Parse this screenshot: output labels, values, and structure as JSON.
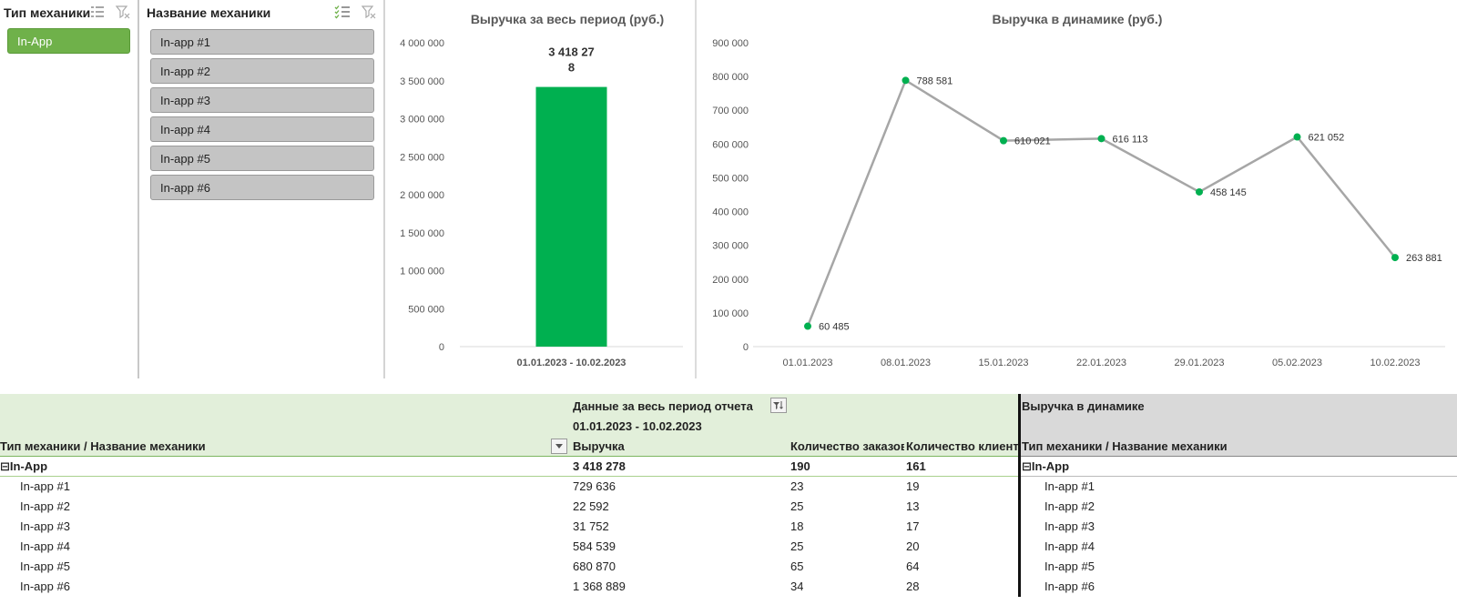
{
  "slicer_type": {
    "title": "Тип механики",
    "items": [
      {
        "label": "In-App",
        "selected": true
      }
    ]
  },
  "slicer_name": {
    "title": "Название механики",
    "items": [
      {
        "label": "In-app #1"
      },
      {
        "label": "In-app #2"
      },
      {
        "label": "In-app #3"
      },
      {
        "label": "In-app #4"
      },
      {
        "label": "In-app #5"
      },
      {
        "label": "In-app #6"
      }
    ]
  },
  "chart_data": [
    {
      "type": "bar",
      "title": "Выручка за весь период (руб.)",
      "categories": [
        "01.01.2023 - 10.02.2023"
      ],
      "values": [
        3418278
      ],
      "data_labels": [
        "3 418 27",
        "8"
      ],
      "ylim": [
        0,
        4000000
      ],
      "yticks": [
        "4 000 000",
        "3 500 000",
        "3 000 000",
        "2 500 000",
        "2 000 000",
        "1 500 000",
        "1 000 000",
        "500 000",
        "0"
      ],
      "color": "#00b050"
    },
    {
      "type": "line",
      "title": "Выручка в динамике  (руб.)",
      "categories": [
        "01.01.2023",
        "08.01.2023",
        "15.01.2023",
        "22.01.2023",
        "29.01.2023",
        "05.02.2023",
        "10.02.2023"
      ],
      "values": [
        60485,
        788581,
        610021,
        616113,
        458145,
        621052,
        263881
      ],
      "data_labels": [
        "60 485",
        "788 581",
        "610 021",
        "616 113",
        "458 145",
        "621 052",
        "263 881"
      ],
      "ylim": [
        0,
        900000
      ],
      "yticks": [
        "900 000",
        "800 000",
        "700 000",
        "600 000",
        "500 000",
        "400 000",
        "300 000",
        "200 000",
        "100 000",
        "0"
      ],
      "line_color": "#a6a6a6",
      "marker_color": "#00b050"
    }
  ],
  "table": {
    "period_title": "Данные за весь период отчета",
    "period_range": "01.01.2023 - 10.02.2023",
    "row_header": "Тип механики / Название механики",
    "col_revenue": "Выручка",
    "col_orders": "Количество заказов",
    "col_clients": "Количество клиентов",
    "right_title": "Выручка в динамике",
    "right_row_header": "Тип механики / Название механики",
    "group": {
      "label": "In-App",
      "revenue": "3 418 278",
      "orders": "190",
      "clients": "161"
    },
    "rows": [
      {
        "label": "In-app #1",
        "revenue": "729 636",
        "orders": "23",
        "clients": "19"
      },
      {
        "label": "In-app #2",
        "revenue": "22 592",
        "orders": "25",
        "clients": "13"
      },
      {
        "label": "In-app #3",
        "revenue": "31 752",
        "orders": "18",
        "clients": "17"
      },
      {
        "label": "In-app #4",
        "revenue": "584 539",
        "orders": "25",
        "clients": "20"
      },
      {
        "label": "In-app #5",
        "revenue": "680 870",
        "orders": "65",
        "clients": "64"
      },
      {
        "label": "In-app #6",
        "revenue": "1 368 889",
        "orders": "34",
        "clients": "28"
      }
    ]
  }
}
